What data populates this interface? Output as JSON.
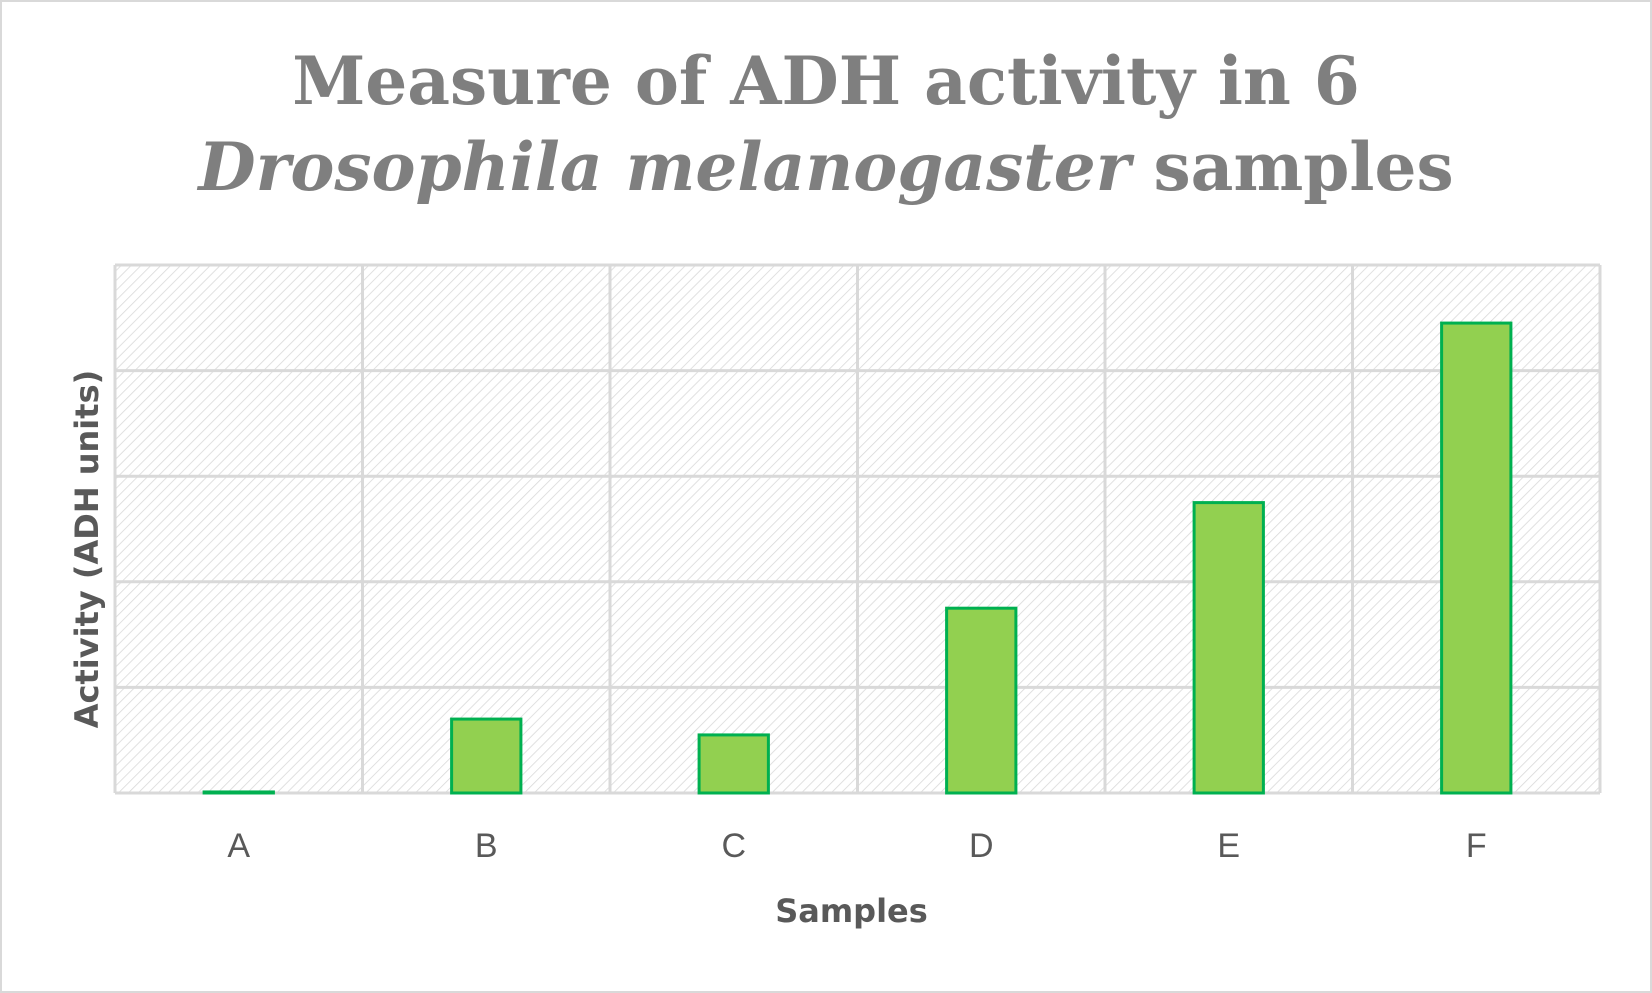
{
  "chart_data": {
    "type": "bar",
    "title_line1": "Measure of ADH activity in 6",
    "title_line2_italic": "Drosophila melanogaster",
    "title_line2_rest": " samples",
    "xlabel": "Samples",
    "ylabel": "Activity (ADH units)",
    "categories": [
      "A",
      "B",
      "C",
      "D",
      "E",
      "F"
    ],
    "values": [
      0.01,
      0.7,
      0.55,
      1.75,
      2.75,
      4.45
    ],
    "ylim": [
      0,
      5
    ],
    "y_gridline_step": 1,
    "y_tick_labels_shown": false,
    "grid": true,
    "legend": "none",
    "bar_fill": "#92d050",
    "bar_edge": "#00b050",
    "plot_pattern_color": "#d9d9d9"
  }
}
